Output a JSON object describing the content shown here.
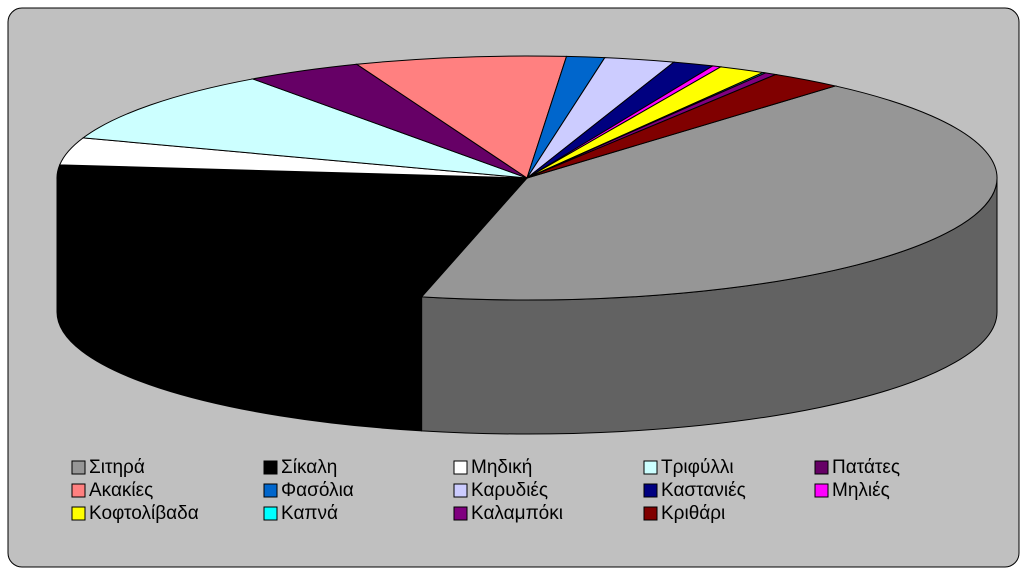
{
  "chart_data": {
    "type": "pie3d",
    "categories": [
      "Σιτηρά",
      "Σίκαλη",
      "Μηδική",
      "Τριφύλλι",
      "Πατάτες",
      "Ακακίες",
      "Φασόλια",
      "Καρυδιές",
      "Καστανιές",
      "Μηλιές",
      "Κοφτολίβαδα",
      "Καπνά",
      "Καλαμπόκι",
      "Κριθάρι"
    ],
    "values": [
      42,
      23,
      3.6,
      9.7,
      4,
      7.2,
      1.3,
      2.4,
      1.4,
      0.3,
      1.6,
      0.1,
      0.4,
      2.5
    ],
    "colors": [
      "#969696",
      "#000000",
      "#ffffff",
      "#ccffff",
      "#660066",
      "#ff8080",
      "#0066cc",
      "#ccccff",
      "#000080",
      "#ff00ff",
      "#ffff00",
      "#00ffff",
      "#800080",
      "#800000"
    ],
    "legend": "bottom"
  }
}
